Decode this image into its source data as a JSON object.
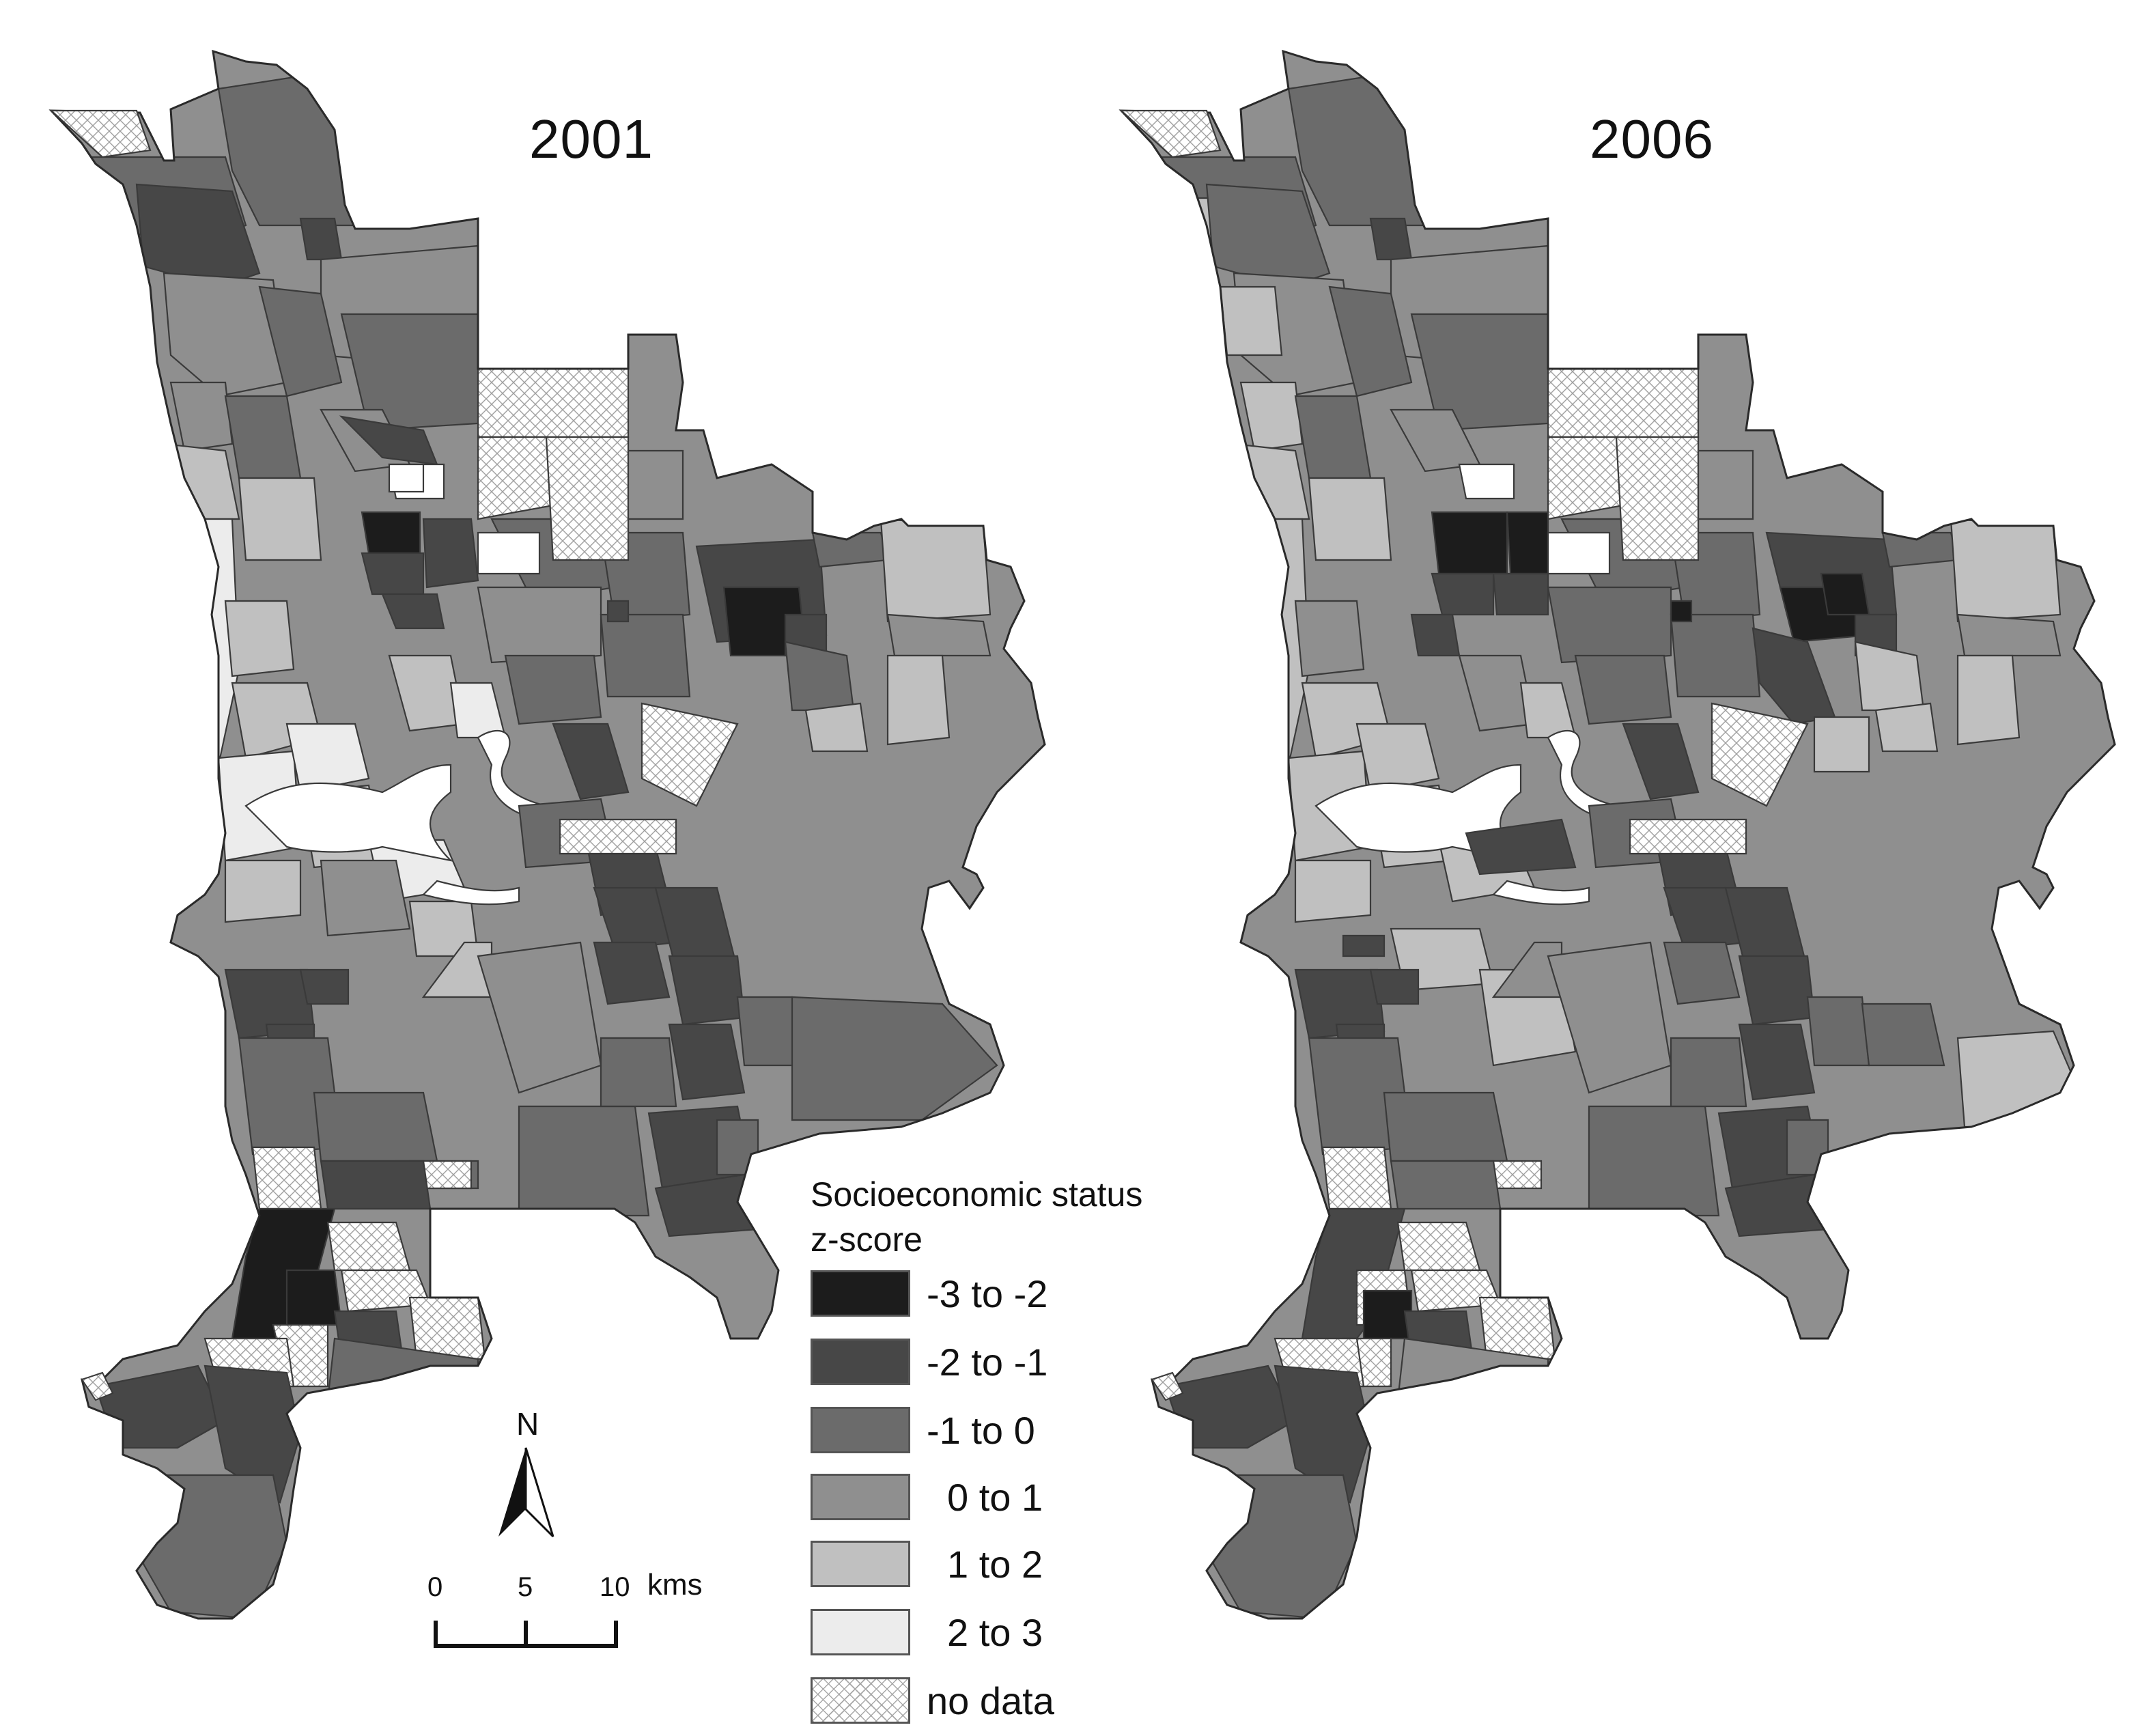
{
  "maps": [
    {
      "year": "2001"
    },
    {
      "year": "2006"
    }
  ],
  "legend": {
    "title_line1": "Socioeconomic status",
    "title_line2": "z-score",
    "classes": [
      {
        "label": "-3 to -2",
        "color": "#1c1c1c",
        "hatched": false
      },
      {
        "label": "-2 to -1",
        "color": "#474747",
        "hatched": false
      },
      {
        "label": "-1 to 0",
        "color": "#6b6b6b",
        "hatched": false
      },
      {
        "label": "0 to 1",
        "color": "#8f8f8f",
        "hatched": false
      },
      {
        "label": "1 to 2",
        "color": "#c0c0c0",
        "hatched": false
      },
      {
        "label": "2 to 3",
        "color": "#ececec",
        "hatched": false
      },
      {
        "label": "no data",
        "color": "#ffffff",
        "hatched": true
      }
    ]
  },
  "north_arrow": {
    "label": "N"
  },
  "scale_bar": {
    "ticks": [
      "0",
      "5",
      "10"
    ],
    "unit": "kms"
  }
}
